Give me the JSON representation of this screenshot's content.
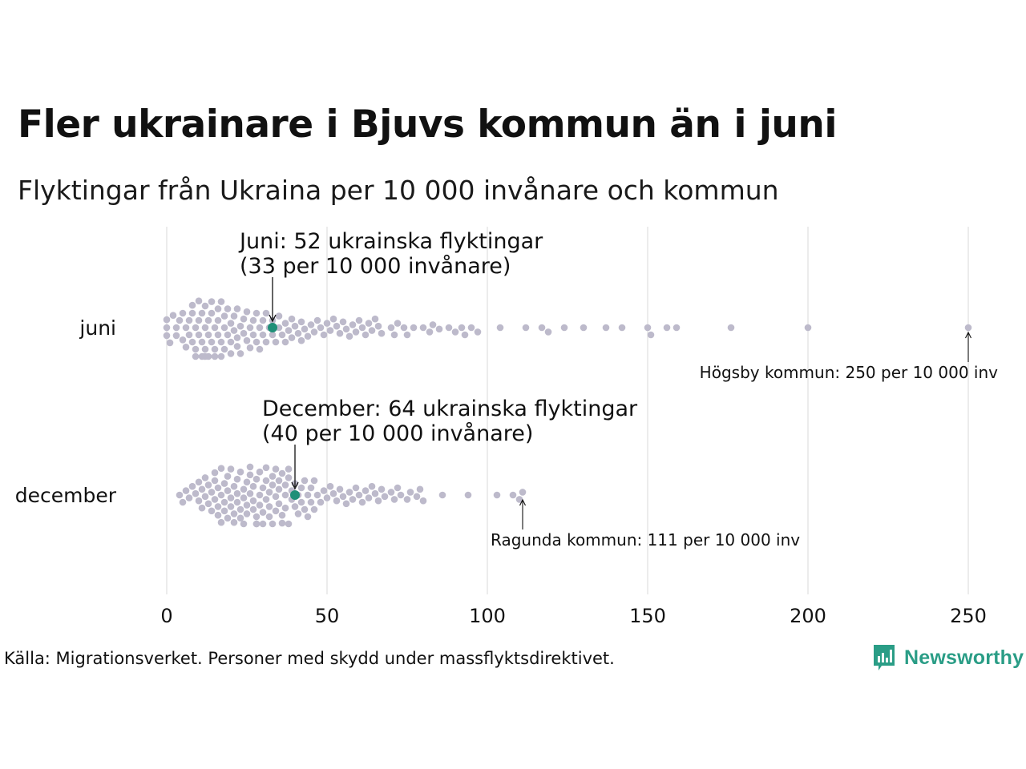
{
  "title": "Fler ukrainare i Bjuvs kommun än i juni",
  "subtitle": "Flyktingar från Ukraina per 10 000 invånare och kommun",
  "source": "Källa: Migrationsverket. Personer med skydd under massflyktsdirektivet.",
  "logo_text": "Newsworthy",
  "colors": {
    "dot": "#bdbacb",
    "highlight": "#1f8f78",
    "grid": "#d9d9d9",
    "logo": "#2a9d86"
  },
  "chart_data": {
    "type": "scatter",
    "subtype": "beeswarm",
    "xlim": [
      0,
      250
    ],
    "x_ticks": [
      "0",
      "50",
      "100",
      "150",
      "200",
      "250"
    ],
    "categories": [
      "juni",
      "december"
    ],
    "series": [
      {
        "name": "juni",
        "highlight_value": 33,
        "highlight_label_line1": "Juni: 52 ukrainska flyktingar",
        "highlight_label_line2": "(33 per 10 000 invånare)",
        "max_label": "Högsby kommun: 250 per 10 000 inv",
        "max_value": 250,
        "values": [
          0,
          0,
          0,
          1,
          2,
          3,
          3,
          4,
          5,
          5,
          6,
          6,
          7,
          7,
          8,
          8,
          8,
          9,
          9,
          9,
          10,
          10,
          10,
          11,
          11,
          11,
          12,
          12,
          12,
          12,
          13,
          13,
          13,
          14,
          14,
          14,
          15,
          15,
          15,
          16,
          16,
          16,
          17,
          17,
          17,
          18,
          18,
          18,
          19,
          19,
          20,
          20,
          20,
          21,
          21,
          22,
          22,
          22,
          23,
          23,
          24,
          24,
          25,
          25,
          26,
          26,
          27,
          27,
          28,
          28,
          29,
          29,
          30,
          30,
          31,
          31,
          32,
          33,
          33,
          34,
          35,
          35,
          36,
          37,
          37,
          38,
          39,
          39,
          40,
          41,
          42,
          42,
          43,
          44,
          45,
          46,
          47,
          48,
          49,
          50,
          51,
          52,
          53,
          54,
          55,
          56,
          57,
          58,
          59,
          60,
          61,
          62,
          63,
          64,
          65,
          66,
          67,
          70,
          71,
          72,
          74,
          75,
          77,
          80,
          82,
          83,
          85,
          88,
          90,
          92,
          93,
          95,
          97,
          104,
          112,
          117,
          119,
          124,
          130,
          137,
          142,
          150,
          151,
          156,
          159,
          176,
          200,
          250
        ]
      },
      {
        "name": "december",
        "highlight_value": 40,
        "highlight_label_line1": "December: 64 ukrainska flyktingar",
        "highlight_label_line2": "(40 per 10 000 invånare)",
        "max_label": "Ragunda kommun: 111 per 10 000 inv",
        "max_value": 111,
        "values": [
          4,
          5,
          6,
          7,
          8,
          9,
          10,
          10,
          11,
          11,
          12,
          12,
          13,
          13,
          14,
          14,
          15,
          15,
          15,
          16,
          16,
          16,
          17,
          17,
          17,
          18,
          18,
          18,
          19,
          19,
          19,
          20,
          20,
          20,
          21,
          21,
          21,
          22,
          22,
          22,
          23,
          23,
          23,
          24,
          24,
          24,
          25,
          25,
          25,
          26,
          26,
          26,
          27,
          27,
          27,
          28,
          28,
          28,
          28,
          29,
          29,
          29,
          30,
          30,
          30,
          31,
          31,
          31,
          32,
          32,
          32,
          33,
          33,
          33,
          34,
          34,
          34,
          35,
          35,
          35,
          36,
          36,
          36,
          37,
          37,
          37,
          38,
          38,
          38,
          39,
          39,
          40,
          40,
          41,
          41,
          42,
          42,
          43,
          43,
          44,
          44,
          45,
          45,
          46,
          46,
          47,
          48,
          49,
          50,
          51,
          52,
          53,
          54,
          55,
          56,
          57,
          58,
          59,
          60,
          61,
          62,
          63,
          64,
          65,
          66,
          67,
          68,
          70,
          71,
          72,
          73,
          75,
          76,
          78,
          79,
          80,
          86,
          94,
          103,
          108,
          110,
          111
        ]
      }
    ]
  }
}
